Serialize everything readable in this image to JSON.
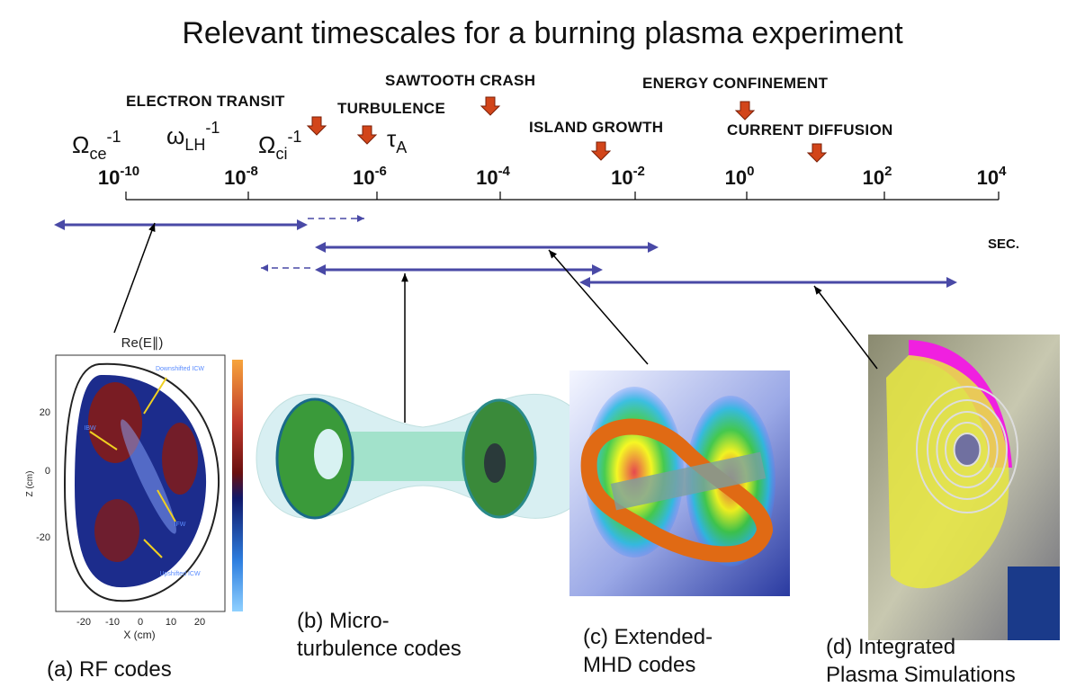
{
  "title": "Relevant timescales for a burning plasma experiment",
  "events": [
    "ELECTRON TRANSIT",
    "SAWTOOTH CRASH",
    "TURBULENCE",
    "ENERGY CONFINEMENT",
    "ISLAND GROWTH",
    "CURRENT DIFFUSION"
  ],
  "frequencies": [
    {
      "symbol": "Ω",
      "sub": "ce",
      "sup": "-1"
    },
    {
      "symbol": "ω",
      "sub": "LH",
      "sup": "-1"
    },
    {
      "symbol": "Ω",
      "sub": "ci",
      "sup": "-1"
    },
    {
      "symbol": "τ",
      "sub": "A"
    }
  ],
  "axis": {
    "ticks": [
      {
        "base": "10",
        "exp": "-10"
      },
      {
        "base": "10",
        "exp": "-8"
      },
      {
        "base": "10",
        "exp": "-6"
      },
      {
        "base": "10",
        "exp": "-4"
      },
      {
        "base": "10",
        "exp": "-2"
      },
      {
        "base": "10",
        "exp": "0"
      },
      {
        "base": "10",
        "exp": "2"
      },
      {
        "base": "10",
        "exp": "4"
      }
    ],
    "unit": "SEC."
  },
  "rf_plot": {
    "title": "Re(E∥)",
    "ylabel": "Z (cm)",
    "xlabel": "X (cm)",
    "yticks": [
      "20",
      "0",
      "-20"
    ],
    "xticks": [
      "-20",
      "-10",
      "0",
      "10",
      "20"
    ],
    "annotations": [
      "Downshifted ICW",
      "IBW",
      "IFW",
      "Upshifted ICW"
    ]
  },
  "panels": [
    {
      "caption": [
        "(a) RF codes"
      ]
    },
    {
      "caption": [
        "(b) Micro-",
        "turbulence codes"
      ]
    },
    {
      "caption": [
        "(c) Extended-",
        "MHD codes"
      ]
    },
    {
      "caption": [
        "(d) Integrated",
        "Plasma Simulations"
      ]
    }
  ]
}
